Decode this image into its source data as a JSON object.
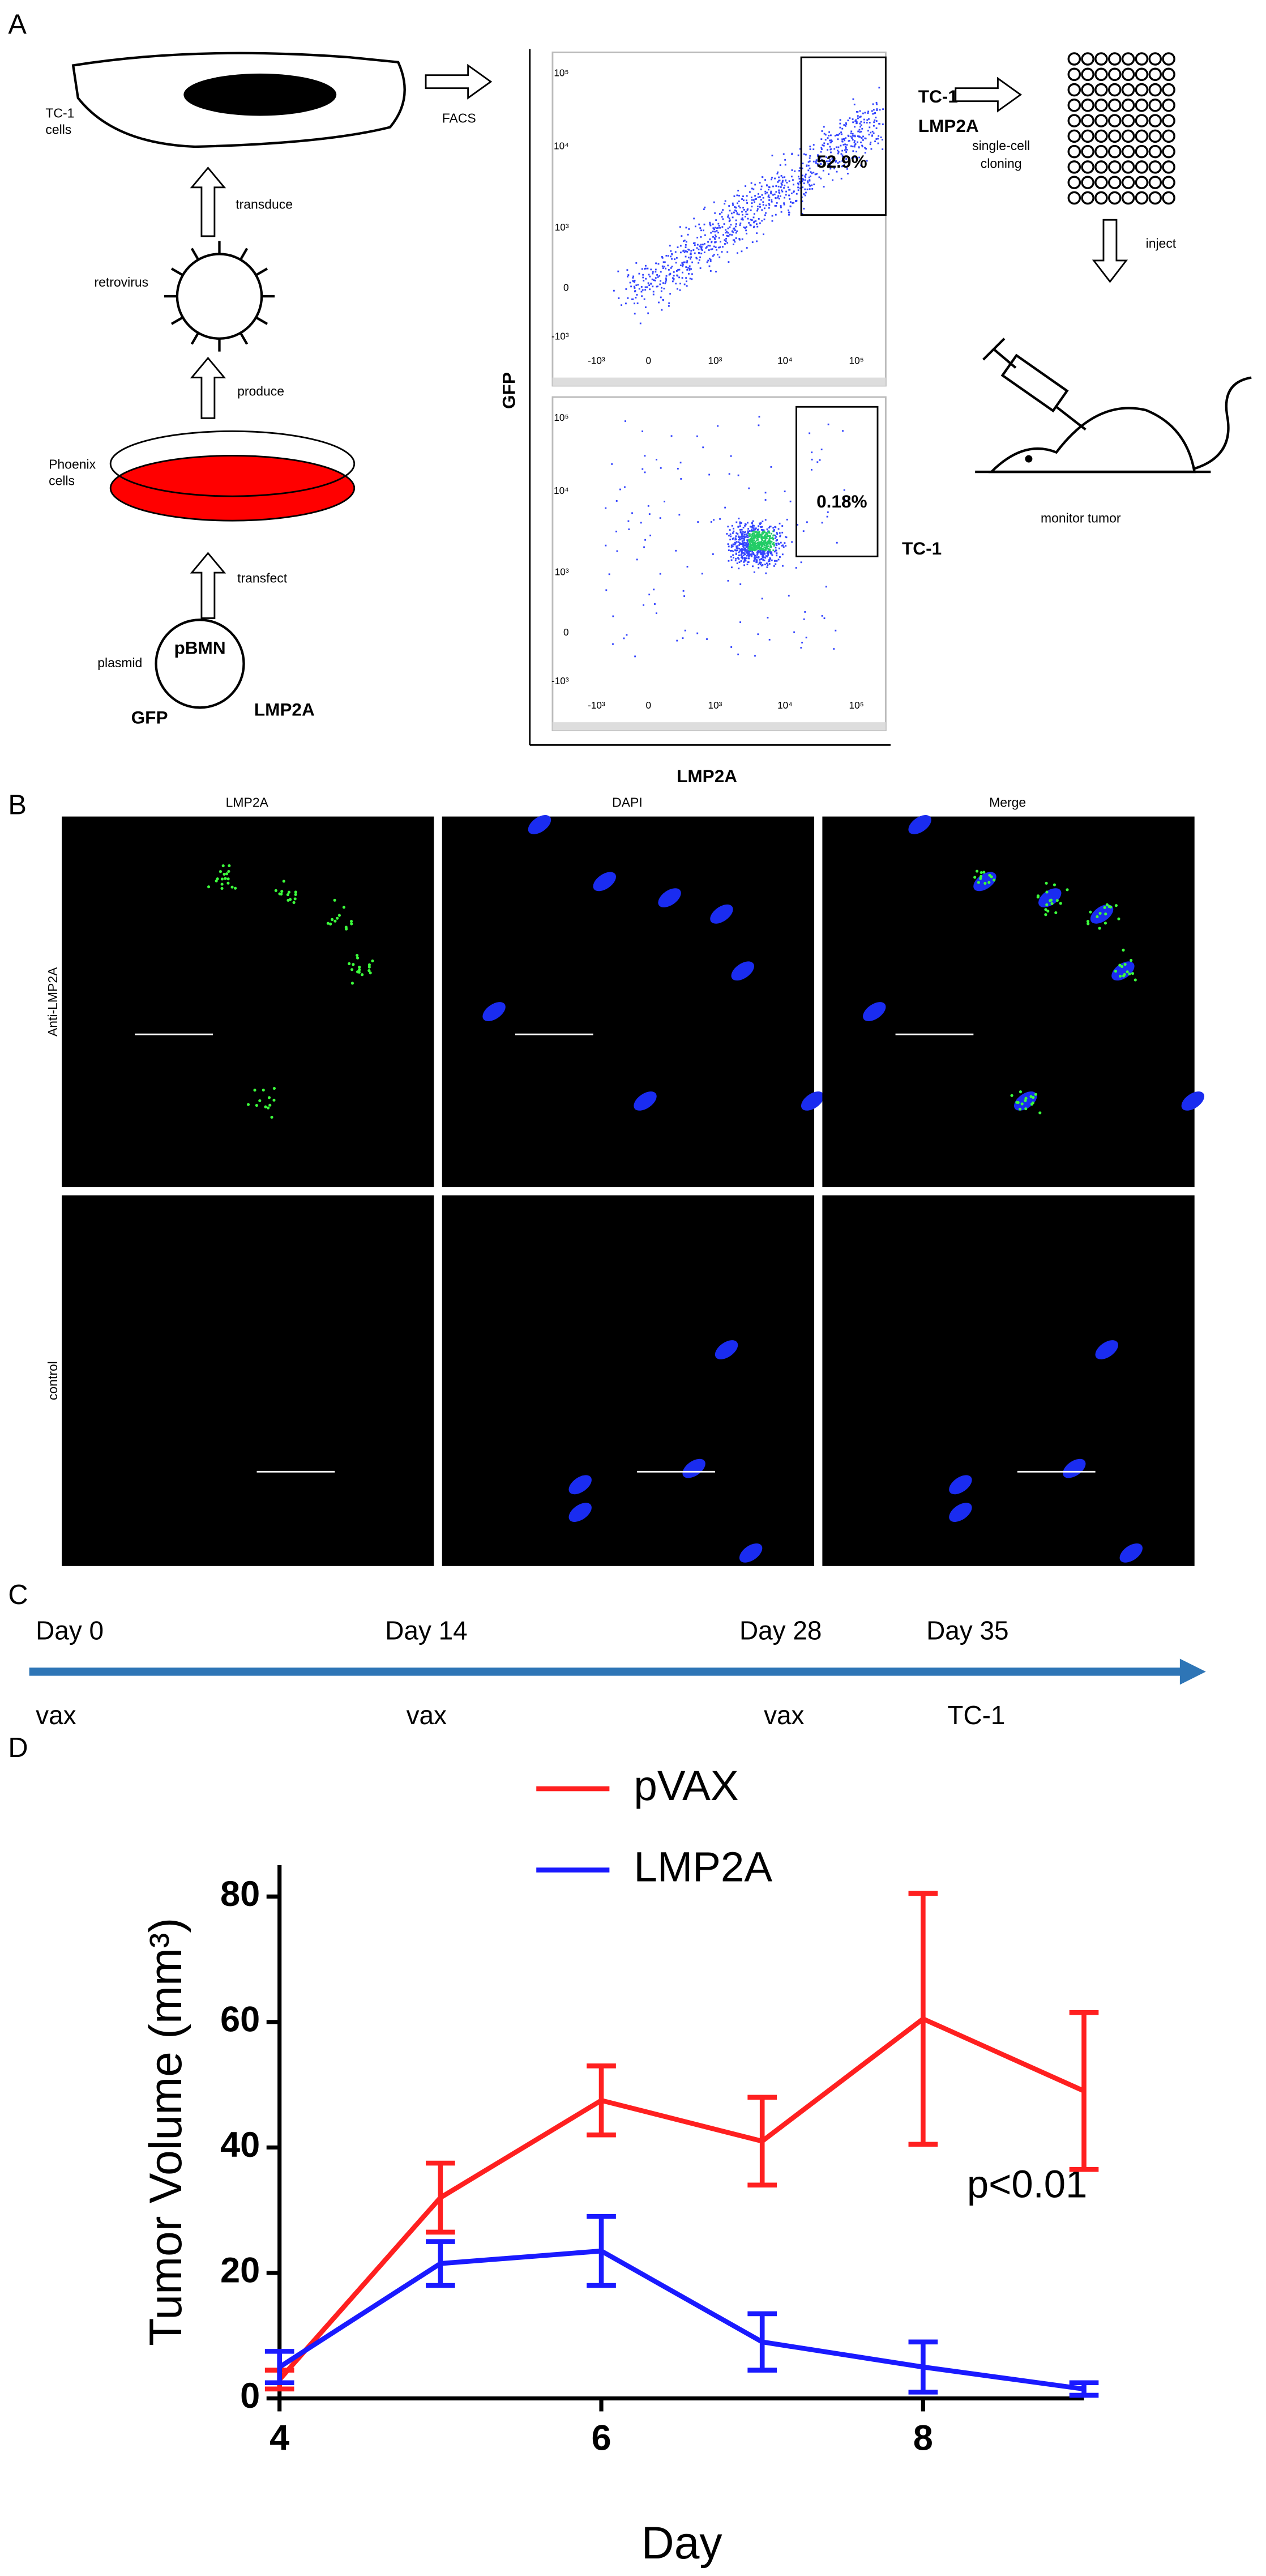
{
  "panel_a": {
    "label": "A",
    "tc1_cells": [
      "TC-1",
      "cells"
    ],
    "transduce": "transduce",
    "retrovirus": "retrovirus",
    "produce": "produce",
    "phoenix_cells": [
      "Phoenix",
      "cells"
    ],
    "transfect": "transfect",
    "plasmid": "plasmid",
    "pbmn": "pBMN",
    "gfp": "GFP",
    "lmp2a": "LMP2A",
    "facs": "FACS",
    "facs_ylabel": "GFP",
    "facs_xlabel": "LMP2A",
    "facs_yticks": [
      "10⁵",
      "10⁴",
      "10³",
      "0",
      "-10³"
    ],
    "facs_xticks": [
      "-10³",
      "0",
      "10³",
      "10⁴",
      "10⁵"
    ],
    "top_gate": "52.9%",
    "top_name": [
      "TC-1-",
      "LMP2A"
    ],
    "bottom_gate": "0.18%",
    "bottom_name": "TC-1",
    "cloning": [
      "single-cell",
      "cloning"
    ],
    "inject": "inject",
    "monitor": "monitor tumor"
  },
  "panel_b": {
    "label": "B",
    "columns": [
      "LMP2A",
      "DAPI",
      "Merge"
    ],
    "rows": [
      "Anti-LMP2A",
      "control"
    ]
  },
  "panel_c": {
    "label": "C",
    "events": [
      {
        "day": "Day 0",
        "label": "vax"
      },
      {
        "day": "Day 14",
        "label": "vax"
      },
      {
        "day": "Day 28",
        "label": "vax"
      },
      {
        "day": "Day 35",
        "label": "TC-1"
      }
    ]
  },
  "panel_d": {
    "label": "D"
  },
  "chart_data": {
    "type": "line",
    "xlabel": "Day",
    "ylabel": "Tumor Volume (mm³)",
    "annotation": "p<0.01",
    "x": [
      4,
      5,
      6,
      7,
      8,
      9
    ],
    "series": [
      {
        "name": "pVAX",
        "color": "#ff2020",
        "values": [
          3,
          32,
          47.5,
          41,
          60.5,
          49
        ],
        "errors": [
          1.5,
          5.5,
          5.5,
          7,
          20,
          12.5
        ]
      },
      {
        "name": "LMP2A",
        "color": "#1a1aff",
        "values": [
          5,
          21.5,
          23.5,
          9,
          5,
          1.5
        ],
        "errors": [
          2.5,
          3.5,
          5.5,
          4.5,
          4,
          1
        ]
      }
    ],
    "xlim": [
      4,
      9
    ],
    "ylim": [
      0,
      85
    ],
    "xticks": [
      4,
      6,
      8
    ],
    "yticks": [
      0,
      20,
      40,
      60,
      80
    ]
  }
}
